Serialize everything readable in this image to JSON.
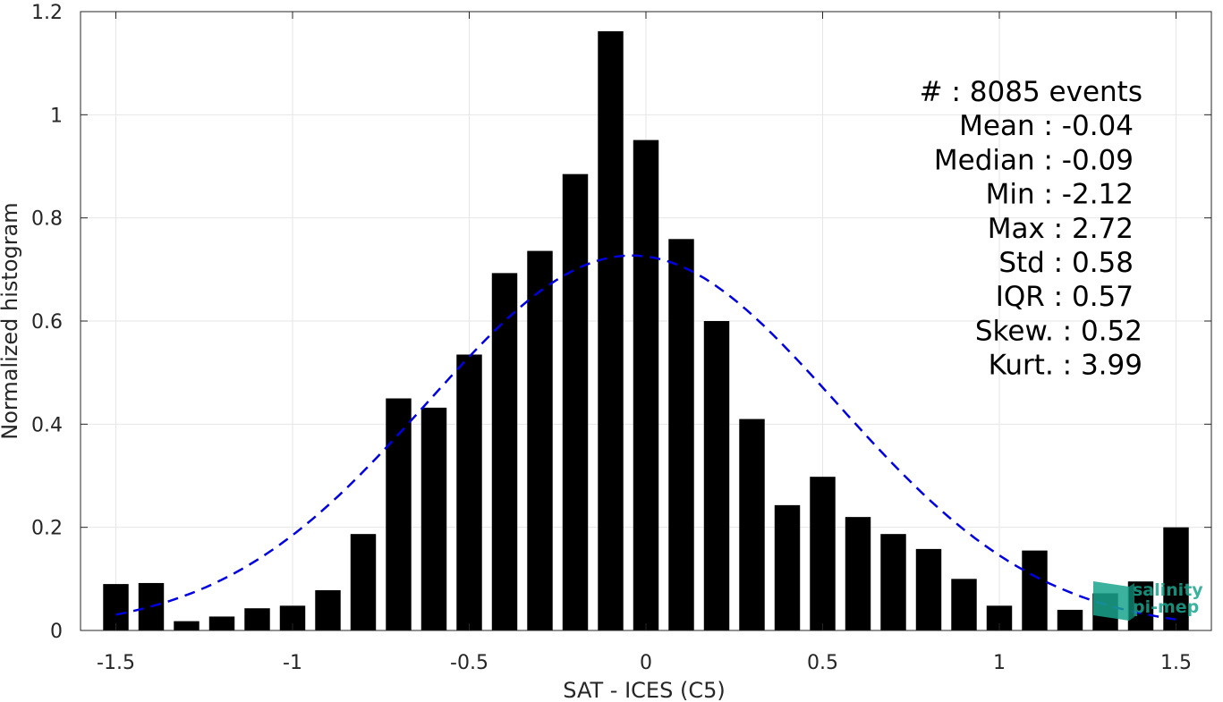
{
  "chart_data": {
    "type": "bar",
    "xlabel": "SAT - ICES (C5)",
    "ylabel": "Normalized histogram",
    "xlim": [
      -1.6,
      1.6
    ],
    "ylim": [
      0,
      1.2
    ],
    "xticks": [
      -1.5,
      -1,
      -0.5,
      0,
      0.5,
      1,
      1.5
    ],
    "xtick_labels": [
      "-1.5",
      "-1",
      "-0.5",
      "0",
      "0.5",
      "1",
      "1.5"
    ],
    "yticks": [
      0,
      0.2,
      0.4,
      0.6,
      0.8,
      1,
      1.2
    ],
    "ytick_labels": [
      "0",
      "0.2",
      "0.4",
      "0.6",
      "0.8",
      "1",
      "1.2"
    ],
    "grid": true,
    "bar_color": "#000000",
    "bins": {
      "x": [
        -1.5,
        -1.4,
        -1.3,
        -1.2,
        -1.1,
        -1.0,
        -0.9,
        -0.8,
        -0.7,
        -0.6,
        -0.5,
        -0.4,
        -0.3,
        -0.2,
        -0.1,
        0.0,
        0.1,
        0.2,
        0.3,
        0.4,
        0.5,
        0.6,
        0.7,
        0.8,
        0.9,
        1.0,
        1.1,
        1.2,
        1.3,
        1.4,
        1.5
      ],
      "values": [
        0.09,
        0.092,
        0.018,
        0.027,
        0.043,
        0.048,
        0.078,
        0.187,
        0.45,
        0.432,
        0.535,
        0.693,
        0.736,
        0.885,
        1.162,
        0.951,
        0.759,
        0.6,
        0.41,
        0.243,
        0.298,
        0.22,
        0.187,
        0.158,
        0.1,
        0.048,
        0.155,
        0.04,
        0.072,
        0.095,
        0.2
      ]
    },
    "fit_curve": {
      "style": "dashed",
      "color": "#0000e0",
      "mean": -0.04,
      "std": 0.58,
      "peak": 0.727,
      "x_range": [
        -1.5,
        1.5
      ]
    },
    "stats_lines": [
      "#  : 8085 events",
      "Mean : -0.04",
      "Median : -0.09",
      "Min : -2.12",
      "Max : 2.72",
      "Std : 0.58",
      "IQR : 0.57",
      "Skew. : 0.52",
      "Kurt. : 3.99"
    ]
  },
  "logo": {
    "line1": "salinity",
    "line2": "pi-mep",
    "color": "#1aa58e"
  }
}
